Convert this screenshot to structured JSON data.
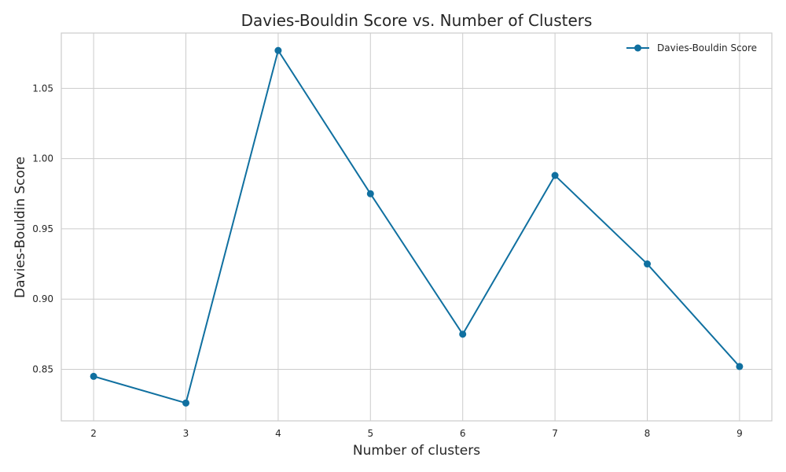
{
  "chart_data": {
    "type": "line",
    "title": "Davies-Bouldin Score vs. Number of Clusters",
    "xlabel": "Number of clusters",
    "ylabel": "Davies-Bouldin Score",
    "x": [
      2,
      3,
      4,
      5,
      6,
      7,
      8,
      9
    ],
    "series": [
      {
        "name": "Davies-Bouldin Score",
        "values": [
          0.845,
          0.826,
          1.077,
          0.975,
          0.875,
          0.988,
          0.925,
          0.852
        ],
        "color": "#1070a0"
      }
    ],
    "xticks": [
      "2",
      "3",
      "4",
      "5",
      "6",
      "7",
      "8",
      "9"
    ],
    "yticks": [
      "0.85",
      "0.90",
      "0.95",
      "1.00",
      "1.05"
    ],
    "ytick_values": [
      0.85,
      0.9,
      0.95,
      1.0,
      1.05
    ],
    "xlim": [
      1.65,
      9.35
    ],
    "ylim": [
      0.8133,
      1.0894
    ],
    "grid": true,
    "legend_position": "top-right",
    "marker": "circle"
  }
}
